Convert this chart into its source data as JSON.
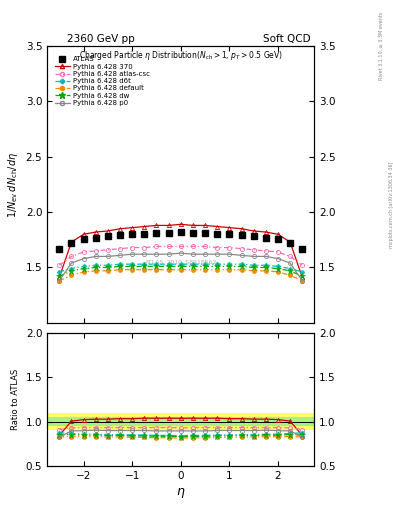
{
  "title_left": "2360 GeV pp",
  "title_right": "Soft QCD",
  "watermark": "ATLAS_2010_S8918562",
  "right_label_top": "Rivet 3.1.10, ≥ 3.3M events",
  "right_label_bottom": "mcplots.cern.ch [arXiv:1306.34 36]",
  "eta": [
    -2.5,
    -2.25,
    -2.0,
    -1.75,
    -1.5,
    -1.25,
    -1.0,
    -0.75,
    -0.5,
    -0.25,
    0.0,
    0.25,
    0.5,
    0.75,
    1.0,
    1.25,
    1.5,
    1.75,
    2.0,
    2.25,
    2.5
  ],
  "ATLAS": [
    1.67,
    1.72,
    1.76,
    1.77,
    1.78,
    1.79,
    1.8,
    1.8,
    1.81,
    1.81,
    1.82,
    1.81,
    1.81,
    1.8,
    1.8,
    1.79,
    1.78,
    1.77,
    1.76,
    1.72,
    1.67
  ],
  "p370": [
    1.41,
    1.73,
    1.8,
    1.82,
    1.83,
    1.85,
    1.86,
    1.87,
    1.88,
    1.88,
    1.89,
    1.88,
    1.88,
    1.87,
    1.86,
    1.85,
    1.83,
    1.82,
    1.8,
    1.73,
    1.41
  ],
  "atlas_csc": [
    1.52,
    1.6,
    1.64,
    1.65,
    1.66,
    1.67,
    1.68,
    1.68,
    1.69,
    1.69,
    1.69,
    1.69,
    1.69,
    1.68,
    1.68,
    1.67,
    1.66,
    1.65,
    1.64,
    1.6,
    1.52
  ],
  "d6t": [
    1.46,
    1.49,
    1.51,
    1.52,
    1.52,
    1.53,
    1.53,
    1.53,
    1.53,
    1.53,
    1.53,
    1.53,
    1.53,
    1.53,
    1.53,
    1.53,
    1.52,
    1.52,
    1.51,
    1.49,
    1.46
  ],
  "default": [
    1.38,
    1.43,
    1.46,
    1.47,
    1.47,
    1.48,
    1.48,
    1.48,
    1.48,
    1.48,
    1.48,
    1.48,
    1.48,
    1.48,
    1.48,
    1.48,
    1.47,
    1.47,
    1.46,
    1.43,
    1.38
  ],
  "dw": [
    1.42,
    1.47,
    1.49,
    1.5,
    1.5,
    1.51,
    1.51,
    1.51,
    1.51,
    1.51,
    1.51,
    1.51,
    1.51,
    1.51,
    1.51,
    1.51,
    1.5,
    1.5,
    1.49,
    1.47,
    1.42
  ],
  "p0": [
    1.38,
    1.54,
    1.58,
    1.6,
    1.6,
    1.61,
    1.62,
    1.62,
    1.62,
    1.62,
    1.63,
    1.62,
    1.62,
    1.62,
    1.62,
    1.61,
    1.6,
    1.6,
    1.58,
    1.54,
    1.38
  ],
  "ylim_main": [
    1.0,
    3.5
  ],
  "ylim_ratio": [
    0.5,
    2.0
  ],
  "yticks_main": [
    1.5,
    2.0,
    2.5,
    3.0,
    3.5
  ],
  "yticks_ratio": [
    0.5,
    1.0,
    1.5,
    2.0
  ],
  "band_yellow": 0.1,
  "band_green": 0.05,
  "colors": {
    "p370": "#cc0000",
    "atlas_csc": "#ff69b4",
    "d6t": "#00bbbb",
    "default": "#ff8800",
    "dw": "#00aa00",
    "p0": "#888888",
    "ATLAS": "#000000"
  }
}
